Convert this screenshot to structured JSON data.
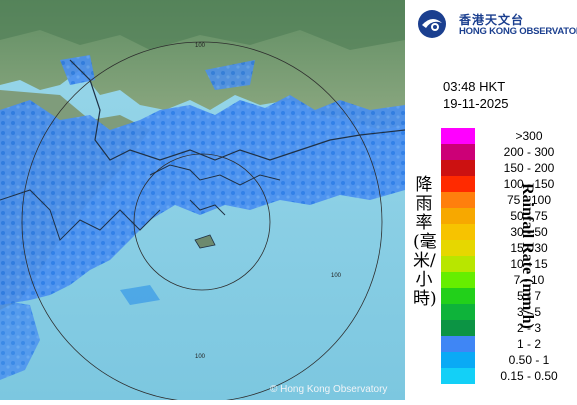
{
  "logo": {
    "chinese": "香港天文台",
    "english": "HONG KONG OBSERVATORY"
  },
  "timestamp": {
    "time": "03:48 HKT",
    "date": "19-11-2025"
  },
  "legend": {
    "title_chinese": "降雨率(毫米/小時)",
    "title_english": "Rainfall Rate (mm/h)",
    "items": [
      {
        "label": ">300",
        "color": "#ff00ff"
      },
      {
        "label": "200 - 300",
        "color": "#cc0077"
      },
      {
        "label": "150 - 200",
        "color": "#cc1111"
      },
      {
        "label": "100 - 150",
        "color": "#ff2a00"
      },
      {
        "label": "75 - 100",
        "color": "#ff7f0d"
      },
      {
        "label": "50 - 75",
        "color": "#f7a800"
      },
      {
        "label": "30 - 50",
        "color": "#f7c300"
      },
      {
        "label": "15 - 30",
        "color": "#e6d700"
      },
      {
        "label": "10 - 15",
        "color": "#b8e600"
      },
      {
        "label": "7 - 10",
        "color": "#66ee00"
      },
      {
        "label": "5 - 7",
        "color": "#22d01a"
      },
      {
        "label": "3 - 5",
        "color": "#0eb33a"
      },
      {
        "label": "2 - 3",
        "color": "#0c9444"
      },
      {
        "label": "1 - 2",
        "color": "#3f86f5"
      },
      {
        "label": "0.50 - 1",
        "color": "#0aaaf5"
      },
      {
        "label": "0.15 - 0.50",
        "color": "#13d0f7"
      }
    ]
  },
  "map": {
    "range_ring_labels": [
      "100",
      "100",
      "100"
    ],
    "copyright": "© Hong Kong Observatory",
    "colors": {
      "sea": "#8fd2e6",
      "land": "#6e8f72",
      "rain_light": "#3b8ff2",
      "rain_faint": "#1aa6f4"
    }
  }
}
